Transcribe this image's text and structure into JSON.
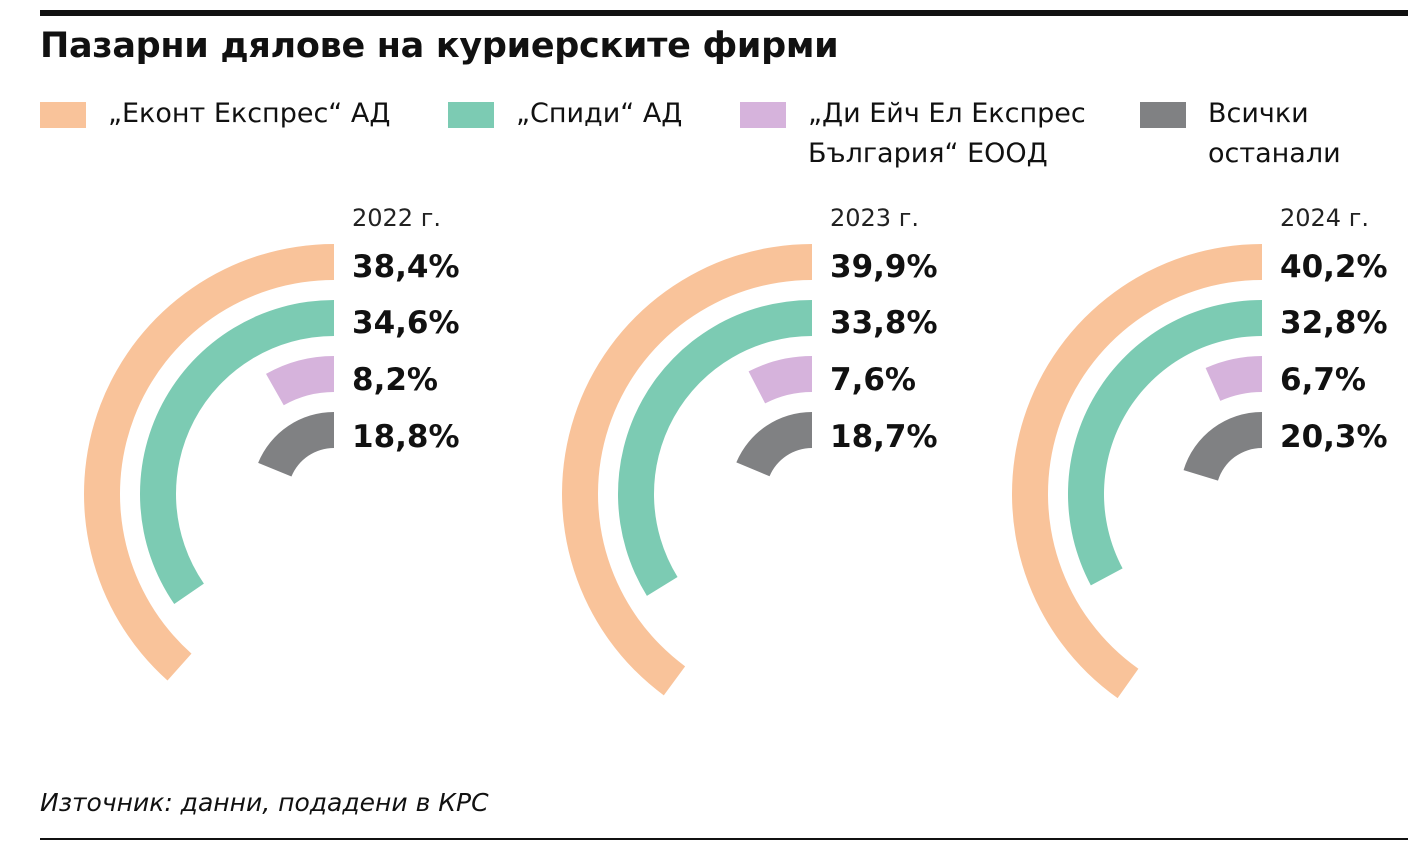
{
  "title": "Пазарни дялове на куриерските фирми",
  "source": "Източник: данни, подадени в КРС",
  "chart_data": {
    "type": "radial-bar",
    "title": "Пазарни дялове на куриерските фирми",
    "unit": "%",
    "legend_position": "top",
    "series": [
      {
        "name": "„Еконт Експрес“ АД",
        "color": "#f9c39a"
      },
      {
        "name": "„Спиди“ АД",
        "color": "#7ccbb3"
      },
      {
        "name": "„Ди Ейч Ел Експрес\nБългария“ ЕООД",
        "color": "#d6b3dc"
      },
      {
        "name": "Всички\nостанали",
        "color": "#808183"
      }
    ],
    "years": [
      {
        "label": "2022 г.",
        "values": [
          38.4,
          34.6,
          8.2,
          18.8
        ],
        "labels": [
          "38,4%",
          "34,6%",
          "8,2%",
          "18,8%"
        ]
      },
      {
        "label": "2023 г.",
        "values": [
          39.9,
          33.8,
          7.6,
          18.7
        ],
        "labels": [
          "39,9%",
          "33,8%",
          "7,6%",
          "18,7%"
        ]
      },
      {
        "label": "2024 г.",
        "values": [
          40.2,
          32.8,
          6.7,
          20.3
        ],
        "labels": [
          "40,2%",
          "32,8%",
          "6,7%",
          "20,3%"
        ]
      }
    ]
  }
}
